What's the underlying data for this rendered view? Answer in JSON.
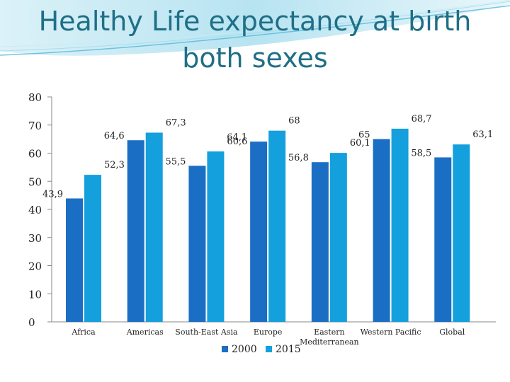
{
  "title": {
    "line1": "Healthy Life expectancy at birth",
    "line2": "both sexes"
  },
  "chart_data": {
    "type": "bar",
    "title": "Healthy Life expectancy at birth both sexes",
    "xlabel": "",
    "ylabel": "",
    "ylim": [
      0,
      80
    ],
    "yticks": [
      0,
      10,
      20,
      30,
      40,
      50,
      60,
      70,
      80
    ],
    "grid": false,
    "legend": "bottom",
    "categories": [
      [
        "Africa"
      ],
      [
        "Americas"
      ],
      [
        "South-East Asia"
      ],
      [
        "Europe"
      ],
      [
        "Eastern",
        "Mediterranean"
      ],
      [
        "Western Pacific"
      ],
      [
        "Global"
      ]
    ],
    "series": [
      {
        "name": "2000",
        "color": "#1a6fc4",
        "values": [
          43.9,
          64.6,
          55.5,
          64.1,
          56.8,
          65,
          58.5
        ],
        "labels": [
          "43,9",
          "64,6",
          "55,5",
          "64,1",
          "56,8",
          "65",
          "58,5"
        ]
      },
      {
        "name": "2015",
        "color": "#14a0dc",
        "values": [
          52.3,
          67.3,
          60.6,
          68,
          60.1,
          68.7,
          63.1
        ],
        "labels": [
          "52,3",
          "67,3",
          "60,6",
          "68",
          "60,1",
          "68,7",
          "63,1"
        ]
      }
    ]
  }
}
